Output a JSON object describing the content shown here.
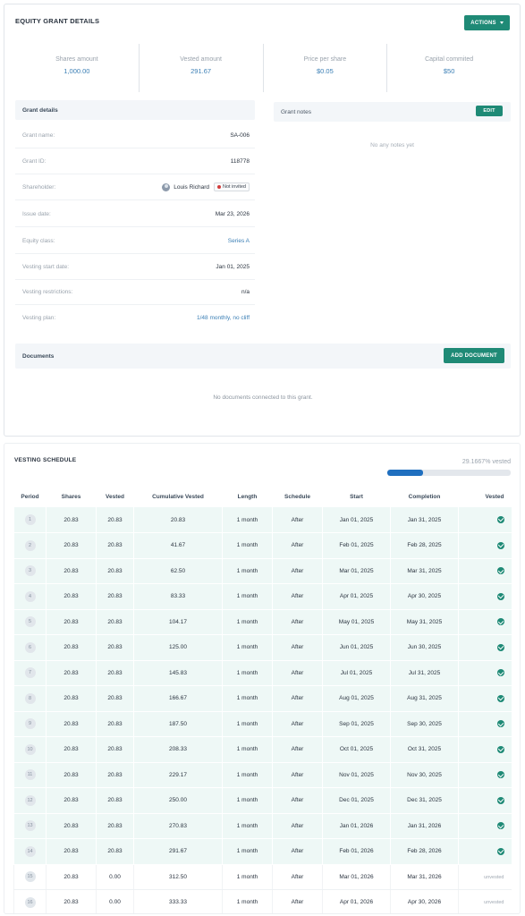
{
  "grant": {
    "title": "EQUITY GRANT DETAILS",
    "actions_label": "ACTIONS",
    "stats": [
      {
        "label": "Shares amount",
        "value": "1,000.00"
      },
      {
        "label": "Vested amount",
        "value": "291.67"
      },
      {
        "label": "Price per share",
        "value": "$0.05"
      },
      {
        "label": "Capital commited",
        "value": "$50"
      }
    ],
    "details_title": "Grant details",
    "details": [
      {
        "label": "Grant name:",
        "value": "SA-006"
      },
      {
        "label": "Grant ID:",
        "value": "118778"
      },
      {
        "label": "Shareholder:",
        "value": "Louis Richard",
        "badge": "Not invited"
      },
      {
        "label": "Issue date:",
        "value": "Mar 23, 2026"
      },
      {
        "label": "Equity class:",
        "value": "Series A"
      },
      {
        "label": "Vesting start date:",
        "value": "Jan 01, 2025"
      },
      {
        "label": "Vesting restrictions:",
        "value": "n/a"
      },
      {
        "label": "Vesting plan:",
        "value": "1/48 monthly, no cliff"
      }
    ],
    "notes_title": "Grant notes",
    "edit_label": "EDIT",
    "notes_empty": "No any notes yet",
    "documents_title": "Documents",
    "add_document_label": "ADD DOCUMENT",
    "documents_empty": "No documents connected to this grant."
  },
  "vesting": {
    "title": "VESTING SCHEDULE",
    "percent_text": "29.1667% vested",
    "percent": 29.1667,
    "columns": [
      "Period",
      "Shares",
      "Vested",
      "Cumulative Vested",
      "Length",
      "Schedule",
      "Start",
      "Completion",
      "Vested"
    ],
    "rows": [
      {
        "period": "1",
        "shares": "20.83",
        "vested": "20.83",
        "cumulative": "20.83",
        "length": "1 month",
        "schedule": "After",
        "start": "Jan 01, 2025",
        "completion": "Jan 31, 2025",
        "status": "vested"
      },
      {
        "period": "2",
        "shares": "20.83",
        "vested": "20.83",
        "cumulative": "41.67",
        "length": "1 month",
        "schedule": "After",
        "start": "Feb 01, 2025",
        "completion": "Feb 28, 2025",
        "status": "vested"
      },
      {
        "period": "3",
        "shares": "20.83",
        "vested": "20.83",
        "cumulative": "62.50",
        "length": "1 month",
        "schedule": "After",
        "start": "Mar 01, 2025",
        "completion": "Mar 31, 2025",
        "status": "vested"
      },
      {
        "period": "4",
        "shares": "20.83",
        "vested": "20.83",
        "cumulative": "83.33",
        "length": "1 month",
        "schedule": "After",
        "start": "Apr 01, 2025",
        "completion": "Apr 30, 2025",
        "status": "vested"
      },
      {
        "period": "5",
        "shares": "20.83",
        "vested": "20.83",
        "cumulative": "104.17",
        "length": "1 month",
        "schedule": "After",
        "start": "May 01, 2025",
        "completion": "May 31, 2025",
        "status": "vested"
      },
      {
        "period": "6",
        "shares": "20.83",
        "vested": "20.83",
        "cumulative": "125.00",
        "length": "1 month",
        "schedule": "After",
        "start": "Jun 01, 2025",
        "completion": "Jun 30, 2025",
        "status": "vested"
      },
      {
        "period": "7",
        "shares": "20.83",
        "vested": "20.83",
        "cumulative": "145.83",
        "length": "1 month",
        "schedule": "After",
        "start": "Jul 01, 2025",
        "completion": "Jul 31, 2025",
        "status": "vested"
      },
      {
        "period": "8",
        "shares": "20.83",
        "vested": "20.83",
        "cumulative": "166.67",
        "length": "1 month",
        "schedule": "After",
        "start": "Aug 01, 2025",
        "completion": "Aug 31, 2025",
        "status": "vested"
      },
      {
        "period": "9",
        "shares": "20.83",
        "vested": "20.83",
        "cumulative": "187.50",
        "length": "1 month",
        "schedule": "After",
        "start": "Sep 01, 2025",
        "completion": "Sep 30, 2025",
        "status": "vested"
      },
      {
        "period": "10",
        "shares": "20.83",
        "vested": "20.83",
        "cumulative": "208.33",
        "length": "1 month",
        "schedule": "After",
        "start": "Oct 01, 2025",
        "completion": "Oct 31, 2025",
        "status": "vested"
      },
      {
        "period": "11",
        "shares": "20.83",
        "vested": "20.83",
        "cumulative": "229.17",
        "length": "1 month",
        "schedule": "After",
        "start": "Nov 01, 2025",
        "completion": "Nov 30, 2025",
        "status": "vested"
      },
      {
        "period": "12",
        "shares": "20.83",
        "vested": "20.83",
        "cumulative": "250.00",
        "length": "1 month",
        "schedule": "After",
        "start": "Dec 01, 2025",
        "completion": "Dec 31, 2025",
        "status": "vested"
      },
      {
        "period": "13",
        "shares": "20.83",
        "vested": "20.83",
        "cumulative": "270.83",
        "length": "1 month",
        "schedule": "After",
        "start": "Jan 01, 2026",
        "completion": "Jan 31, 2026",
        "status": "vested"
      },
      {
        "period": "14",
        "shares": "20.83",
        "vested": "20.83",
        "cumulative": "291.67",
        "length": "1 month",
        "schedule": "After",
        "start": "Feb 01, 2026",
        "completion": "Feb 28, 2026",
        "status": "vested"
      },
      {
        "period": "15",
        "shares": "20.83",
        "vested": "0.00",
        "cumulative": "312.50",
        "length": "1 month",
        "schedule": "After",
        "start": "Mar 01, 2026",
        "completion": "Mar 31, 2026",
        "status": "unvested"
      },
      {
        "period": "16",
        "shares": "20.83",
        "vested": "0.00",
        "cumulative": "333.33",
        "length": "1 month",
        "schedule": "After",
        "start": "Apr 01, 2026",
        "completion": "Apr 30, 2026",
        "status": "unvested"
      }
    ],
    "unvested_label": "unvested"
  },
  "colors": {
    "accent": "#1f8a76",
    "link": "#3b7fb5",
    "progress": "#1f6fbf",
    "vested_row": "#eef8f6",
    "not_invited_dot": "#d23c3c"
  }
}
